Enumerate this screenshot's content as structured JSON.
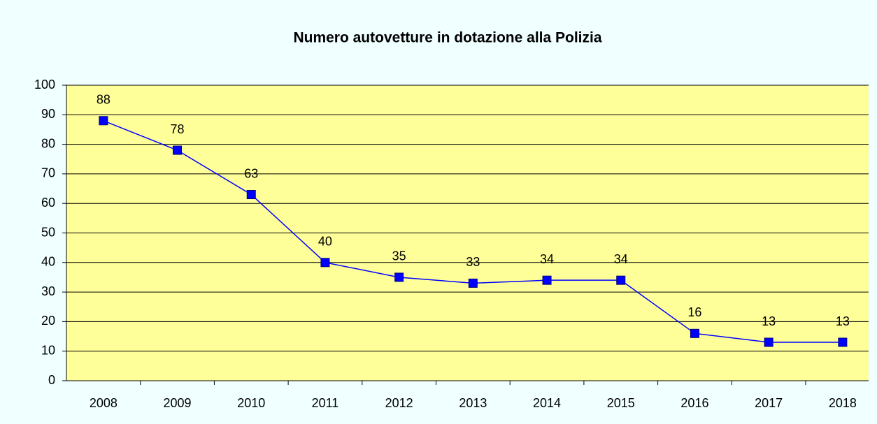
{
  "chart_data": {
    "type": "line",
    "title": "Numero autovetture in dotazione alla Polizia",
    "categories": [
      "2008",
      "2009",
      "2010",
      "2011",
      "2012",
      "2013",
      "2014",
      "2015",
      "2016",
      "2017",
      "2018"
    ],
    "series": [
      {
        "name": "Numero autovetture",
        "color": "#0000ff",
        "values": [
          88,
          78,
          63,
          40,
          35,
          33,
          34,
          34,
          16,
          13,
          13
        ]
      }
    ],
    "ylim": [
      0,
      100
    ],
    "yticks": [
      0,
      10,
      20,
      30,
      40,
      50,
      60,
      70,
      80,
      90,
      100
    ],
    "grid": true
  }
}
